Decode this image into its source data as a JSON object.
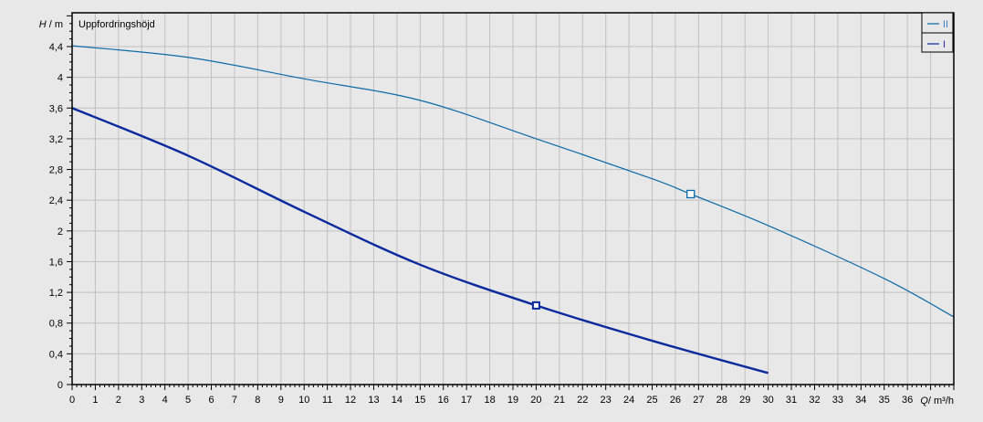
{
  "chart_data": {
    "type": "line",
    "title": "Uppfordringshöjd",
    "xlabel_symbol": "Q",
    "xlabel_unit": "/ m³/h",
    "ylabel_symbol": "H",
    "ylabel_unit": "/ m",
    "xlim": [
      0,
      38
    ],
    "ylim": [
      0,
      4.84
    ],
    "x_ticks": [
      0,
      1,
      2,
      3,
      4,
      5,
      6,
      7,
      8,
      9,
      10,
      11,
      12,
      13,
      14,
      15,
      16,
      17,
      18,
      19,
      20,
      21,
      22,
      23,
      24,
      25,
      26,
      27,
      28,
      29,
      30,
      31,
      32,
      33,
      34,
      35,
      36
    ],
    "y_ticks": [
      "0",
      "0,4",
      "0,8",
      "1,2",
      "1,6",
      "2",
      "2,4",
      "2,8",
      "3,2",
      "3,6",
      "4",
      "4,4"
    ],
    "y_tick_values": [
      0,
      0.4,
      0.8,
      1.2,
      1.6,
      2,
      2.4,
      2.8,
      3.2,
      3.6,
      4,
      4.4
    ],
    "grid": true,
    "legend_position": "top-right",
    "series": [
      {
        "name": "II",
        "color": "#0a6aa8",
        "x": [
          0,
          5,
          10,
          15,
          20,
          25,
          26.66,
          30,
          35,
          38
        ],
        "y": [
          4.41,
          4.26,
          3.98,
          3.7,
          3.2,
          2.68,
          2.48,
          2.07,
          1.38,
          0.88
        ],
        "operating_point": [
          26.66,
          2.48
        ]
      },
      {
        "name": "I",
        "color": "#0a2a9e",
        "x": [
          0,
          5,
          10,
          15,
          20,
          25,
          30
        ],
        "y": [
          3.6,
          2.98,
          2.25,
          1.56,
          1.03,
          0.57,
          0.15
        ],
        "operating_point": [
          20,
          1.03
        ]
      }
    ]
  }
}
